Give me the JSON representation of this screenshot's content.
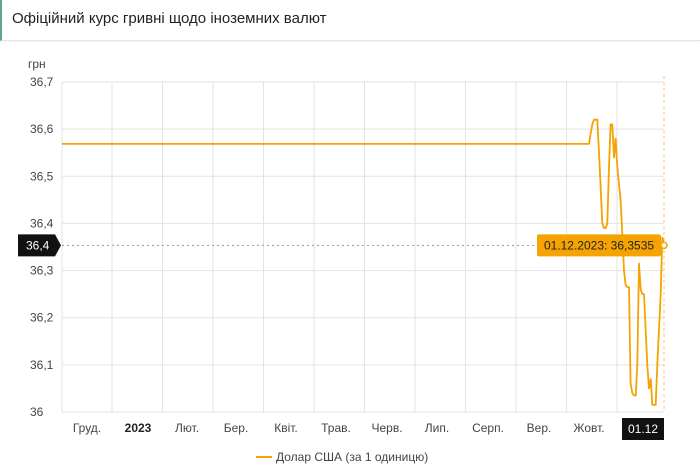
{
  "page": {
    "title": "Офіційний курс гривні щодо іноземних валют"
  },
  "colors": {
    "series": "#f5a300",
    "tooltip_bg": "#f5a300",
    "crosshair_label_bg": "#111111",
    "grid": "#e3e3e3"
  },
  "chart_data": {
    "type": "line",
    "ylabel": "грн",
    "ylim": [
      36.0,
      36.7
    ],
    "yticks": [
      "36,7",
      "36,6",
      "36,5",
      "36,4",
      "36,3",
      "36,2",
      "36,1",
      "36"
    ],
    "xticks": [
      {
        "label": "Груд.",
        "bold": false
      },
      {
        "label": "2023",
        "bold": true
      },
      {
        "label": "Лют.",
        "bold": false
      },
      {
        "label": "Бер.",
        "bold": false
      },
      {
        "label": "Квіт.",
        "bold": false
      },
      {
        "label": "Трав.",
        "bold": false
      },
      {
        "label": "Черв.",
        "bold": false
      },
      {
        "label": "Лип.",
        "bold": false
      },
      {
        "label": "Серп.",
        "bold": false
      },
      {
        "label": "Вер.",
        "bold": false
      },
      {
        "label": "Жовт.",
        "bold": false
      }
    ],
    "series": [
      {
        "name": "Долар США (за 1 одиницю)",
        "color": "#f5a300",
        "points": [
          [
            "2022-11-22",
            36.5686
          ],
          [
            "2023-10-04",
            36.5686
          ],
          [
            "2023-10-05",
            36.59
          ],
          [
            "2023-10-06",
            36.61
          ],
          [
            "2023-10-07",
            36.62
          ],
          [
            "2023-10-09",
            36.62
          ],
          [
            "2023-10-10",
            36.55
          ],
          [
            "2023-10-11",
            36.48
          ],
          [
            "2023-10-12",
            36.4
          ],
          [
            "2023-10-13",
            36.39
          ],
          [
            "2023-10-14",
            36.39
          ],
          [
            "2023-10-15",
            36.4
          ],
          [
            "2023-10-16",
            36.52
          ],
          [
            "2023-10-17",
            36.61
          ],
          [
            "2023-10-18",
            36.61
          ],
          [
            "2023-10-19",
            36.54
          ],
          [
            "2023-10-20",
            36.58
          ],
          [
            "2023-10-21",
            36.52
          ],
          [
            "2023-10-23",
            36.45
          ],
          [
            "2023-10-24",
            36.38
          ],
          [
            "2023-10-25",
            36.3
          ],
          [
            "2023-10-26",
            36.27
          ],
          [
            "2023-10-27",
            36.265
          ],
          [
            "2023-10-28",
            36.265
          ],
          [
            "2023-10-29",
            36.06
          ],
          [
            "2023-10-30",
            36.04
          ],
          [
            "2023-10-31",
            36.035
          ],
          [
            "2023-11-01",
            36.035
          ],
          [
            "2023-11-02",
            36.1
          ],
          [
            "2023-11-03",
            36.315
          ],
          [
            "2023-11-04",
            36.26
          ],
          [
            "2023-11-05",
            36.25
          ],
          [
            "2023-11-06",
            36.25
          ],
          [
            "2023-11-08",
            36.1
          ],
          [
            "2023-11-09",
            36.05
          ],
          [
            "2023-11-10",
            36.07
          ],
          [
            "2023-11-11",
            36.015
          ],
          [
            "2023-11-13",
            36.015
          ],
          [
            "2023-11-14",
            36.1
          ],
          [
            "2023-11-16",
            36.25
          ],
          [
            "2023-11-17",
            36.37
          ],
          [
            "2023-11-18",
            36.355
          ]
        ]
      }
    ],
    "crosshair": {
      "x_label": "01.12",
      "y_label": "36,4",
      "tooltip": "01.12.2023: 36,3535",
      "value": 36.3535
    },
    "grid": true,
    "legend_position": "bottom-center"
  }
}
